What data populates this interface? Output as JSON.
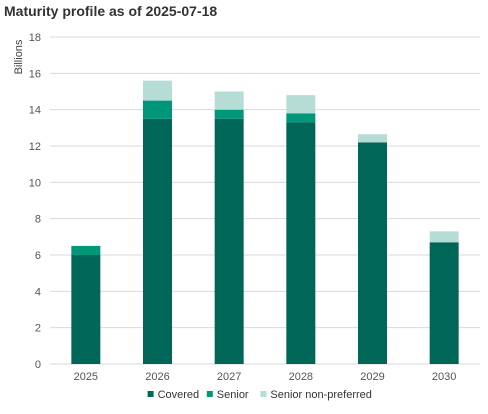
{
  "colors": {
    "covered": "#006657",
    "senior": "#00967A",
    "senior_non_preferred": "#B6DCD6",
    "grid": "#D9D9D9"
  },
  "chart_data": {
    "type": "bar",
    "stacked": true,
    "title": "Maturity profile as of 2025-07-18",
    "xlabel": "",
    "ylabel": "Billions",
    "categories": [
      "2025",
      "2026",
      "2027",
      "2028",
      "2029",
      "2030"
    ],
    "series": [
      {
        "name": "Covered",
        "color_key": "covered",
        "values": [
          6.0,
          13.5,
          13.5,
          13.3,
          12.2,
          6.7
        ]
      },
      {
        "name": "Senior",
        "color_key": "senior",
        "values": [
          0.5,
          1.0,
          0.5,
          0.5,
          0.0,
          0.0
        ]
      },
      {
        "name": "Senior non-preferred",
        "color_key": "senior_non_preferred",
        "values": [
          0.0,
          1.1,
          1.0,
          1.0,
          0.45,
          0.6
        ]
      }
    ],
    "ylim": [
      0,
      18
    ],
    "yticks": [
      0,
      2,
      4,
      6,
      8,
      10,
      12,
      14,
      16,
      18
    ],
    "grid": true,
    "legend_position": "bottom"
  }
}
